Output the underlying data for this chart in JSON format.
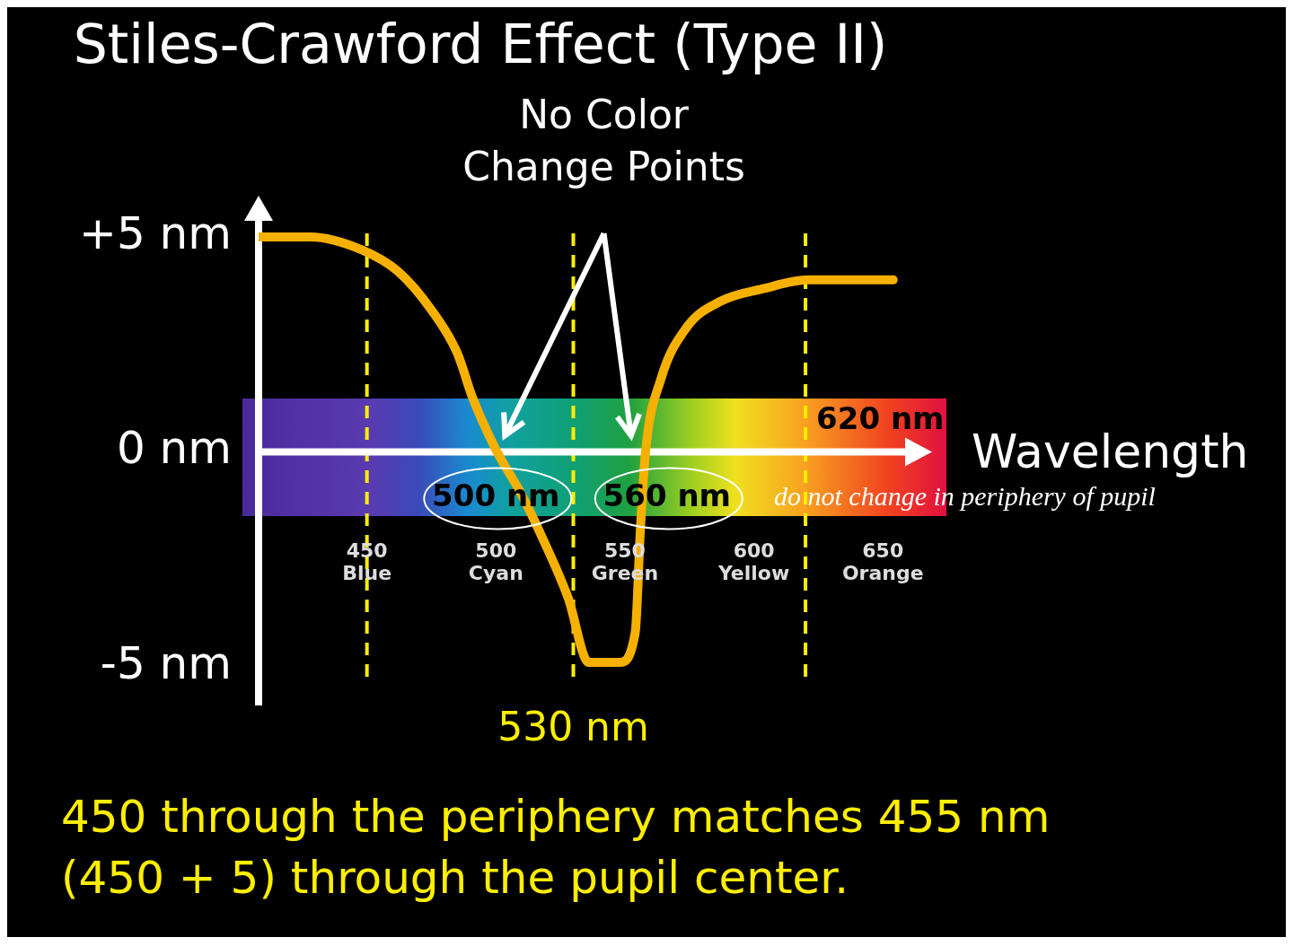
{
  "chart_data": {
    "type": "line",
    "title": "Stiles-Crawford Effect (Type II)",
    "xlabel": "Wavelength",
    "x": [
      408,
      428,
      448,
      462,
      475,
      485,
      491,
      500,
      510,
      518,
      528,
      536,
      548,
      554,
      556,
      558,
      564,
      574,
      587,
      604,
      621,
      654
    ],
    "series": [
      {
        "color": "#f5b000",
        "values": [
          5,
          5,
          4.7,
          4.2,
          3.3,
          2.3,
          1.25,
          0.05,
          -1,
          -2,
          -3.4,
          -4.9,
          -4.9,
          -4.2,
          -1.8,
          0,
          1.7,
          2.9,
          3.5,
          3.8,
          4,
          4
        ]
      }
    ],
    "xlim": [
      408,
      660
    ],
    "ylim": [
      -5.9,
      5.5
    ],
    "xticks": [
      {
        "value": 450,
        "label": "450\nBlue"
      },
      {
        "value": 500,
        "label": "500\nCyan"
      },
      {
        "value": 550,
        "label": "550\nGreen"
      },
      {
        "value": 600,
        "label": "600\nYellow"
      },
      {
        "value": 650,
        "label": "650\nOrange"
      }
    ],
    "yticks": [
      {
        "value": 5,
        "label": "+5 nm"
      },
      {
        "value": 0,
        "label": "0 nm"
      },
      {
        "value": -5,
        "label": "-5 nm"
      }
    ],
    "ref_lines": [
      {
        "axis": "x",
        "value": 450,
        "label": null,
        "color": "#ffee00",
        "line_style": "dashed"
      },
      {
        "axis": "x",
        "value": 530,
        "label": "530 nm",
        "color": "#ffee00",
        "line_style": "dashed"
      },
      {
        "axis": "x",
        "value": 620,
        "label": "620 nm",
        "color": "#ffee00",
        "line_style": "dashed"
      }
    ],
    "annotations": [
      "No Color Change Points",
      "do not change in periphery of pupil",
      "450 through the periphery matches 455 nm (450 + 5) through the pupil center.",
      "500 nm",
      "560 nm"
    ],
    "grid": false,
    "legend": false,
    "marker": "none",
    "line_style": "solid"
  }
}
